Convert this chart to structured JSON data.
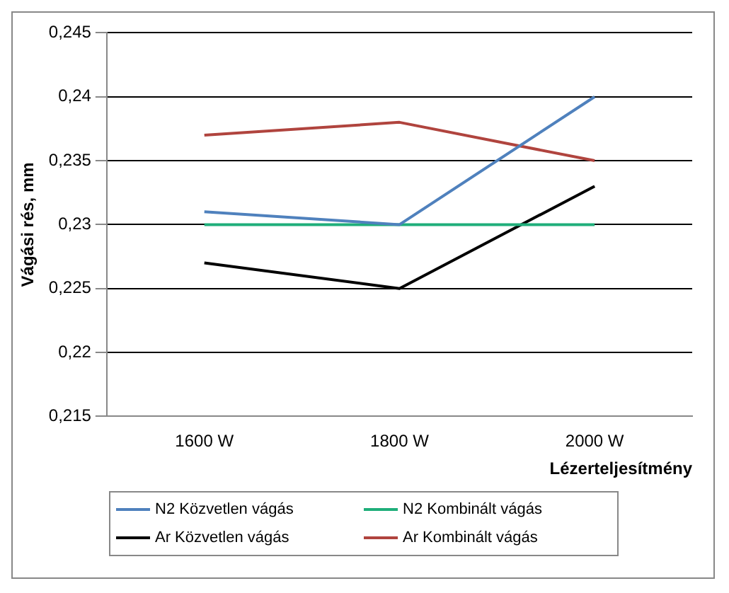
{
  "chart_data": {
    "type": "line",
    "xlabel": "Lézerteljesítmény",
    "ylabel": "Vágási rés, mm",
    "categories": [
      "1600 W",
      "1800 W",
      "2000 W"
    ],
    "series": [
      {
        "name": "N2 Közvetlen vágás",
        "color": "#4f81bd",
        "values": [
          0.231,
          0.23,
          0.24
        ]
      },
      {
        "name": "N2 Kombinált vágás",
        "color": "#1fae7a",
        "values": [
          0.23,
          0.23,
          0.23
        ]
      },
      {
        "name": "Ar Közvetlen vágás",
        "color": "#000000",
        "values": [
          0.227,
          0.225,
          0.233
        ]
      },
      {
        "name": "Ar Kombinált vágás",
        "color": "#b0443e",
        "values": [
          0.237,
          0.238,
          0.235
        ]
      }
    ],
    "ylim": [
      0.215,
      0.245
    ],
    "yticks": [
      {
        "value": 0.215,
        "label": "0,215"
      },
      {
        "value": 0.22,
        "label": "0,22"
      },
      {
        "value": 0.225,
        "label": "0,225"
      },
      {
        "value": 0.23,
        "label": "0,23"
      },
      {
        "value": 0.235,
        "label": "0,235"
      },
      {
        "value": 0.24,
        "label": "0,24"
      },
      {
        "value": 0.245,
        "label": "0,245"
      }
    ],
    "grid": "y",
    "legend": "bottom",
    "marker": "none",
    "line_style": "solid"
  }
}
